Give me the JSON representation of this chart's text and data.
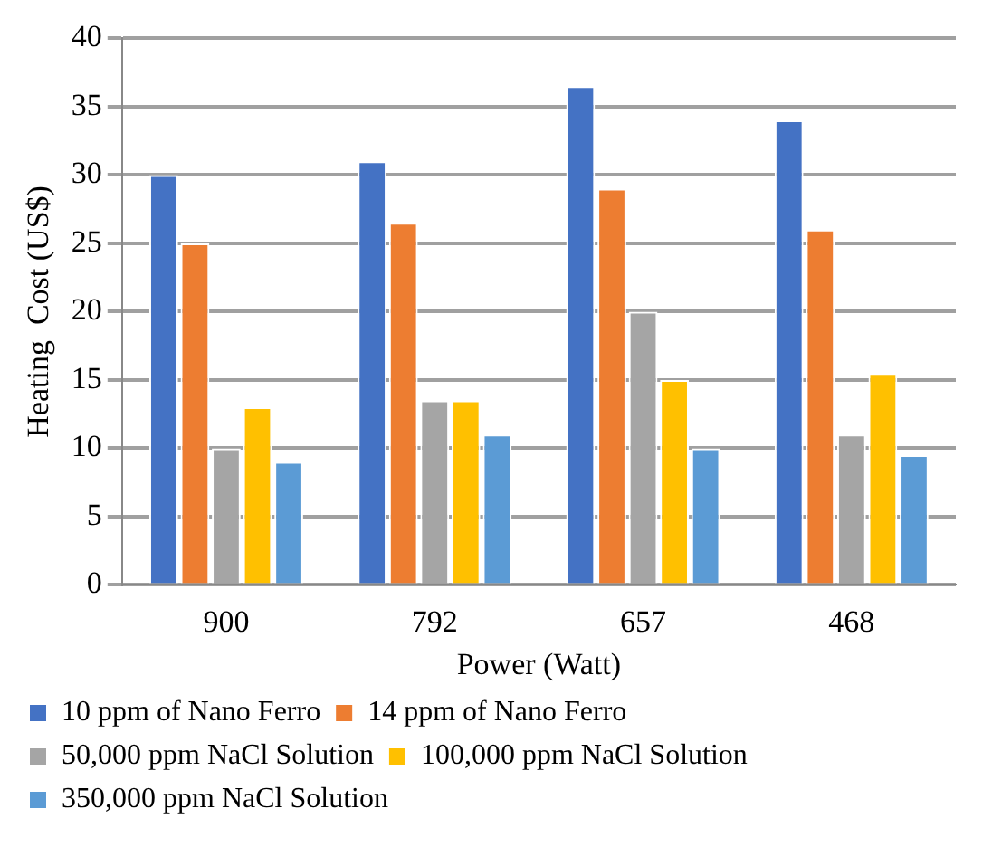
{
  "chart_data": {
    "type": "bar",
    "xlabel": "Power (Watt)",
    "ylabel": "Heating  Cost (US$)",
    "categories": [
      "900",
      "792",
      "657",
      "468"
    ],
    "series": [
      {
        "name": "10 ppm of Nano Ferro",
        "color": "#4472c4",
        "values": [
          30,
          31,
          36.5,
          34
        ]
      },
      {
        "name": "14 ppm of Nano Ferro",
        "color": "#ed7d31",
        "values": [
          25,
          26.5,
          29,
          26
        ]
      },
      {
        "name": "50,000 ppm NaCl Solution",
        "color": "#a5a5a5",
        "values": [
          10,
          13.5,
          20,
          11
        ]
      },
      {
        "name": "100,000 ppm NaCl Solution",
        "color": "#ffc000",
        "values": [
          13,
          13.5,
          15,
          15.5
        ]
      },
      {
        "name": "350,000 ppm NaCl Solution",
        "color": "#5b9bd5",
        "values": [
          9,
          11,
          10,
          9.5
        ]
      }
    ],
    "ylim": [
      0,
      40
    ],
    "yticks": [
      0,
      5,
      10,
      15,
      20,
      25,
      30,
      35,
      40
    ],
    "grid": "y",
    "legend": "bottom"
  }
}
